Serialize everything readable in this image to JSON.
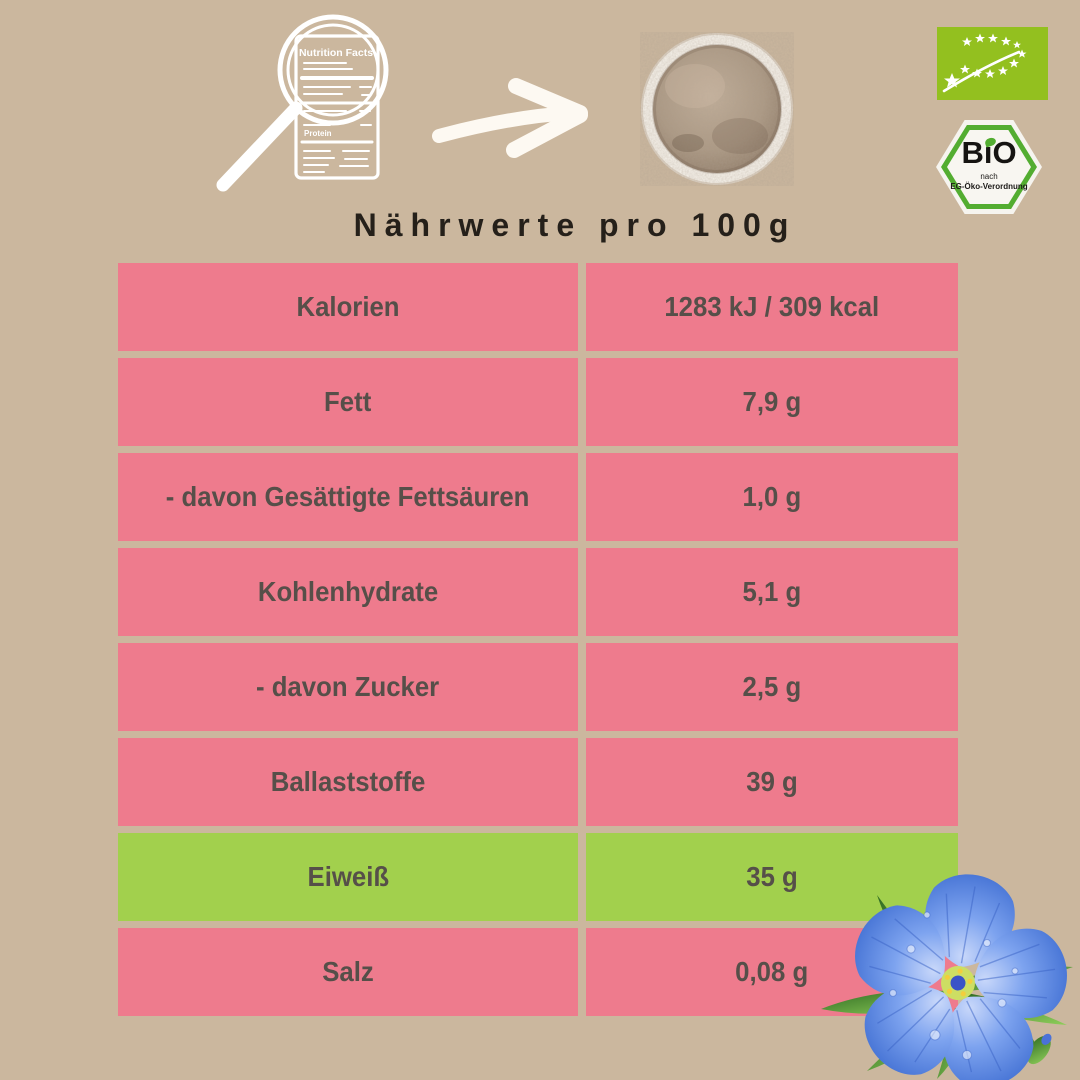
{
  "page": {
    "background": "#cbb79e"
  },
  "header": {
    "magnifier_label": {
      "title": "Nutrition Facts",
      "protein": "Protein"
    },
    "bio_seal": {
      "text": "BiO",
      "sub1": "nach",
      "sub2": "EG-Öko-Verordnung"
    }
  },
  "title": "Nährwerte pro 100g",
  "table": {
    "rows": [
      {
        "label": "Kalorien",
        "value": "1283 kJ / 309 kcal",
        "highlight": false
      },
      {
        "label": "Fett",
        "value": "7,9 g",
        "highlight": false
      },
      {
        "label": "- davon Gesättigte Fettsäuren",
        "value": "1,0 g",
        "highlight": false
      },
      {
        "label": "Kohlenhydrate",
        "value": "5,1 g",
        "highlight": false
      },
      {
        "label": "- davon Zucker",
        "value": "2,5 g",
        "highlight": false
      },
      {
        "label": "Ballaststoffe",
        "value": "39 g",
        "highlight": false
      },
      {
        "label": "Eiweiß",
        "value": "35 g",
        "highlight": true
      },
      {
        "label": "Salz",
        "value": "0,08 g",
        "highlight": false
      }
    ]
  },
  "colors": {
    "row_pink": "#ee7b8d",
    "row_green": "#a2d04d",
    "row_text": "#564f49",
    "title_text": "#25201a",
    "eu_logo_green": "#93c01f",
    "bio_seal_green": "#53ad31",
    "background": "#cbb79e"
  }
}
